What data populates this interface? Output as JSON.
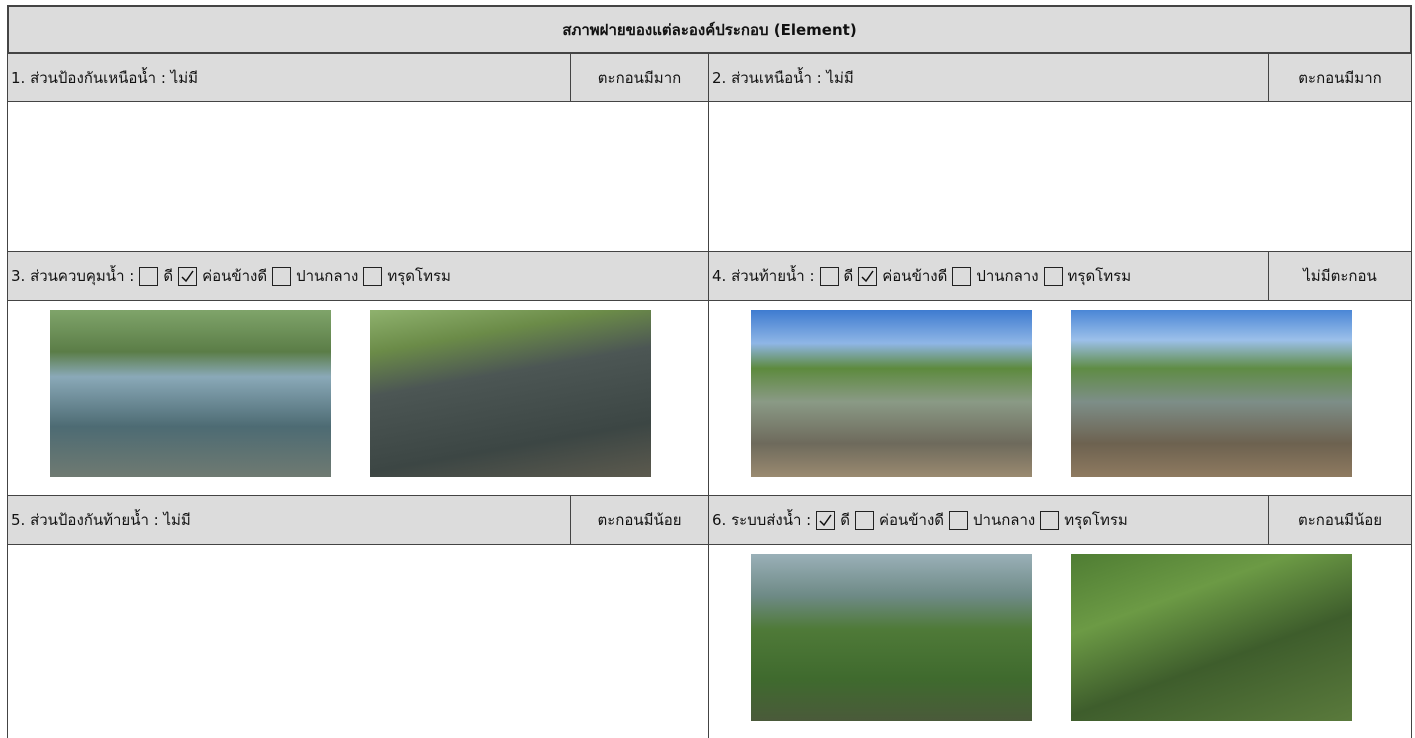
{
  "title": "สภาพฝายของแต่ละองค์ประกอบ (Element)",
  "sections": [
    {
      "label": "1. ส่วนป้องกันเหนือน้ำ : ไม่มี",
      "status": "ตะกอนมีมาก"
    },
    {
      "label": "2. ส่วนเหนือน้ำ : ไม่มี",
      "status": "ตะกอนมีมาก"
    },
    {
      "label": "3. ส่วนควบคุมน้ำ :",
      "options": [
        {
          "label": "ดี",
          "checked": false
        },
        {
          "label": "ค่อนข้างดี",
          "checked": true
        },
        {
          "label": "ปานกลาง",
          "checked": false
        },
        {
          "label": "ทรุดโทรม",
          "checked": false
        }
      ]
    },
    {
      "label": "4. ส่วนท้ายน้ำ :",
      "status": "ไม่มีตะกอน",
      "options": [
        {
          "label": "ดี",
          "checked": false
        },
        {
          "label": "ค่อนข้างดี",
          "checked": true
        },
        {
          "label": "ปานกลาง",
          "checked": false
        },
        {
          "label": "ทรุดโทรม",
          "checked": false
        }
      ]
    },
    {
      "label": "5. ส่วนป้องกันท้ายน้ำ : ไม่มี",
      "status": "ตะกอนมีน้อย"
    },
    {
      "label": "6. ระบบส่งน้ำ :",
      "status": "ตะกอนมีน้อย",
      "options": [
        {
          "label": "ดี",
          "checked": true
        },
        {
          "label": "ค่อนข้างดี",
          "checked": false
        },
        {
          "label": "ปานกลาง",
          "checked": false
        },
        {
          "label": "ทรุดโทรม",
          "checked": false
        }
      ]
    }
  ]
}
